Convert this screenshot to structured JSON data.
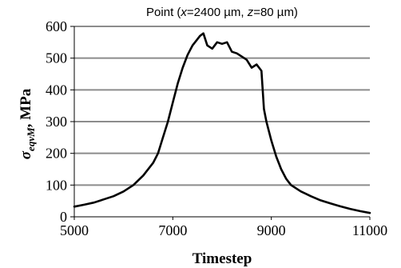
{
  "chart_data": {
    "type": "line",
    "title": {
      "prefix": "Point (",
      "x_var": "x",
      "x_eq": "=2400 µm, ",
      "z_var": "z",
      "z_eq": "=80 µm)"
    },
    "xlabel": "Timestep",
    "ylabel": {
      "symbol": "σ",
      "subscript": "eqvM",
      "unit": ", MPa"
    },
    "xlim": [
      5000,
      11000
    ],
    "ylim": [
      0,
      600
    ],
    "x_ticks": [
      "5000",
      "7000",
      "9000",
      "11000"
    ],
    "y_ticks": [
      "0",
      "100",
      "200",
      "300",
      "400",
      "500",
      "600"
    ],
    "grid": "horizontal",
    "line_color": "#000000",
    "grid_color": "#8c8c8c",
    "series": [
      {
        "x": [
          5000,
          5200,
          5400,
          5600,
          5800,
          6000,
          6200,
          6400,
          6600,
          6700,
          6800,
          6900,
          7000,
          7100,
          7200,
          7300,
          7400,
          7500,
          7550,
          7620,
          7700,
          7800,
          7900,
          8000,
          8100,
          8200,
          8300,
          8400,
          8500,
          8600,
          8700,
          8800,
          8850,
          8900,
          9000,
          9100,
          9200,
          9300,
          9400,
          9600,
          9800,
          10000,
          10200,
          10400,
          10600,
          10800,
          11000
        ],
        "y": [
          32,
          38,
          45,
          55,
          65,
          80,
          100,
          130,
          170,
          200,
          250,
          300,
          360,
          420,
          470,
          510,
          540,
          560,
          570,
          578,
          540,
          530,
          550,
          545,
          550,
          520,
          515,
          505,
          495,
          470,
          480,
          460,
          340,
          300,
          240,
          190,
          150,
          120,
          100,
          80,
          65,
          52,
          42,
          33,
          25,
          18,
          12
        ]
      }
    ]
  }
}
